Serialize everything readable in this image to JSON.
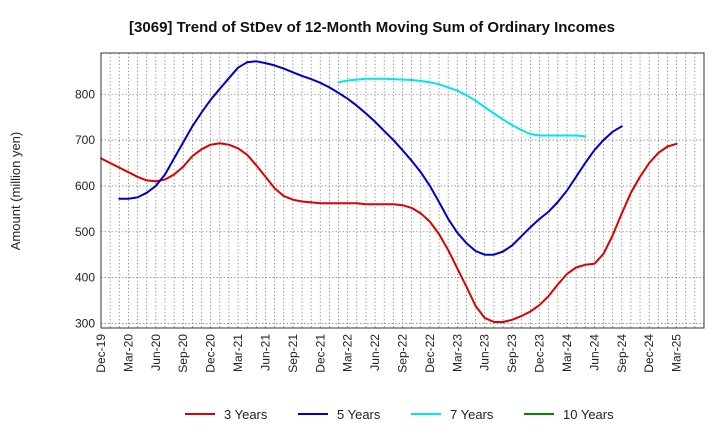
{
  "chart_data": {
    "type": "line",
    "title": "[3069]  Trend of StDev of 12-Month Moving Sum of Ordinary Incomes",
    "xlabel": "",
    "ylabel": "Amount (million yen)",
    "ylim": [
      290,
      890
    ],
    "yticks": [
      300,
      400,
      500,
      600,
      700,
      800
    ],
    "x_range_months": [
      0,
      66
    ],
    "x_ticks": [
      "Dec-19",
      "Mar-20",
      "Jun-20",
      "Sep-20",
      "Dec-20",
      "Mar-21",
      "Jun-21",
      "Sep-21",
      "Dec-21",
      "Mar-22",
      "Jun-22",
      "Sep-22",
      "Dec-22",
      "Mar-23",
      "Jun-23",
      "Sep-23",
      "Dec-23",
      "Mar-24",
      "Jun-24",
      "Sep-24",
      "Dec-24",
      "Mar-25"
    ],
    "grid": true,
    "legend_position": "bottom",
    "series": [
      {
        "name": "3 Years",
        "color": "#dd0000",
        "start_month": 0,
        "values": [
          660,
          650,
          640,
          630,
          620,
          612,
          610,
          614,
          625,
          642,
          665,
          680,
          690,
          693,
          690,
          682,
          668,
          645,
          620,
          595,
          578,
          570,
          566,
          564,
          562,
          562,
          562,
          562,
          562,
          560,
          560,
          560,
          560,
          558,
          552,
          540,
          522,
          495,
          460,
          420,
          380,
          338,
          312,
          303,
          303,
          308,
          316,
          326,
          340,
          360,
          385,
          408,
          422,
          428,
          430,
          452,
          492,
          540,
          585,
          620,
          650,
          672,
          686,
          692
        ]
      },
      {
        "name": "5 Years",
        "color": "#0000cc",
        "start_month": 2,
        "values": [
          572,
          572,
          575,
          585,
          600,
          625,
          660,
          695,
          730,
          760,
          788,
          812,
          835,
          858,
          870,
          872,
          868,
          863,
          856,
          848,
          840,
          833,
          825,
          815,
          803,
          790,
          775,
          758,
          740,
          720,
          700,
          678,
          655,
          630,
          600,
          565,
          528,
          498,
          475,
          458,
          450,
          450,
          457,
          470,
          490,
          510,
          528,
          544,
          565,
          590,
          620,
          650,
          678,
          700,
          718,
          730
        ]
      },
      {
        "name": "7 Years",
        "color": "#00e5ee",
        "start_month": 26,
        "values": [
          826,
          830,
          832,
          834,
          834,
          834,
          833,
          832,
          831,
          829,
          826,
          822,
          815,
          808,
          798,
          786,
          772,
          758,
          745,
          733,
          722,
          713,
          710,
          710,
          710,
          710,
          710,
          708
        ]
      },
      {
        "name": "10 Years",
        "color": "#008800",
        "start_month": 0,
        "values": []
      }
    ]
  }
}
